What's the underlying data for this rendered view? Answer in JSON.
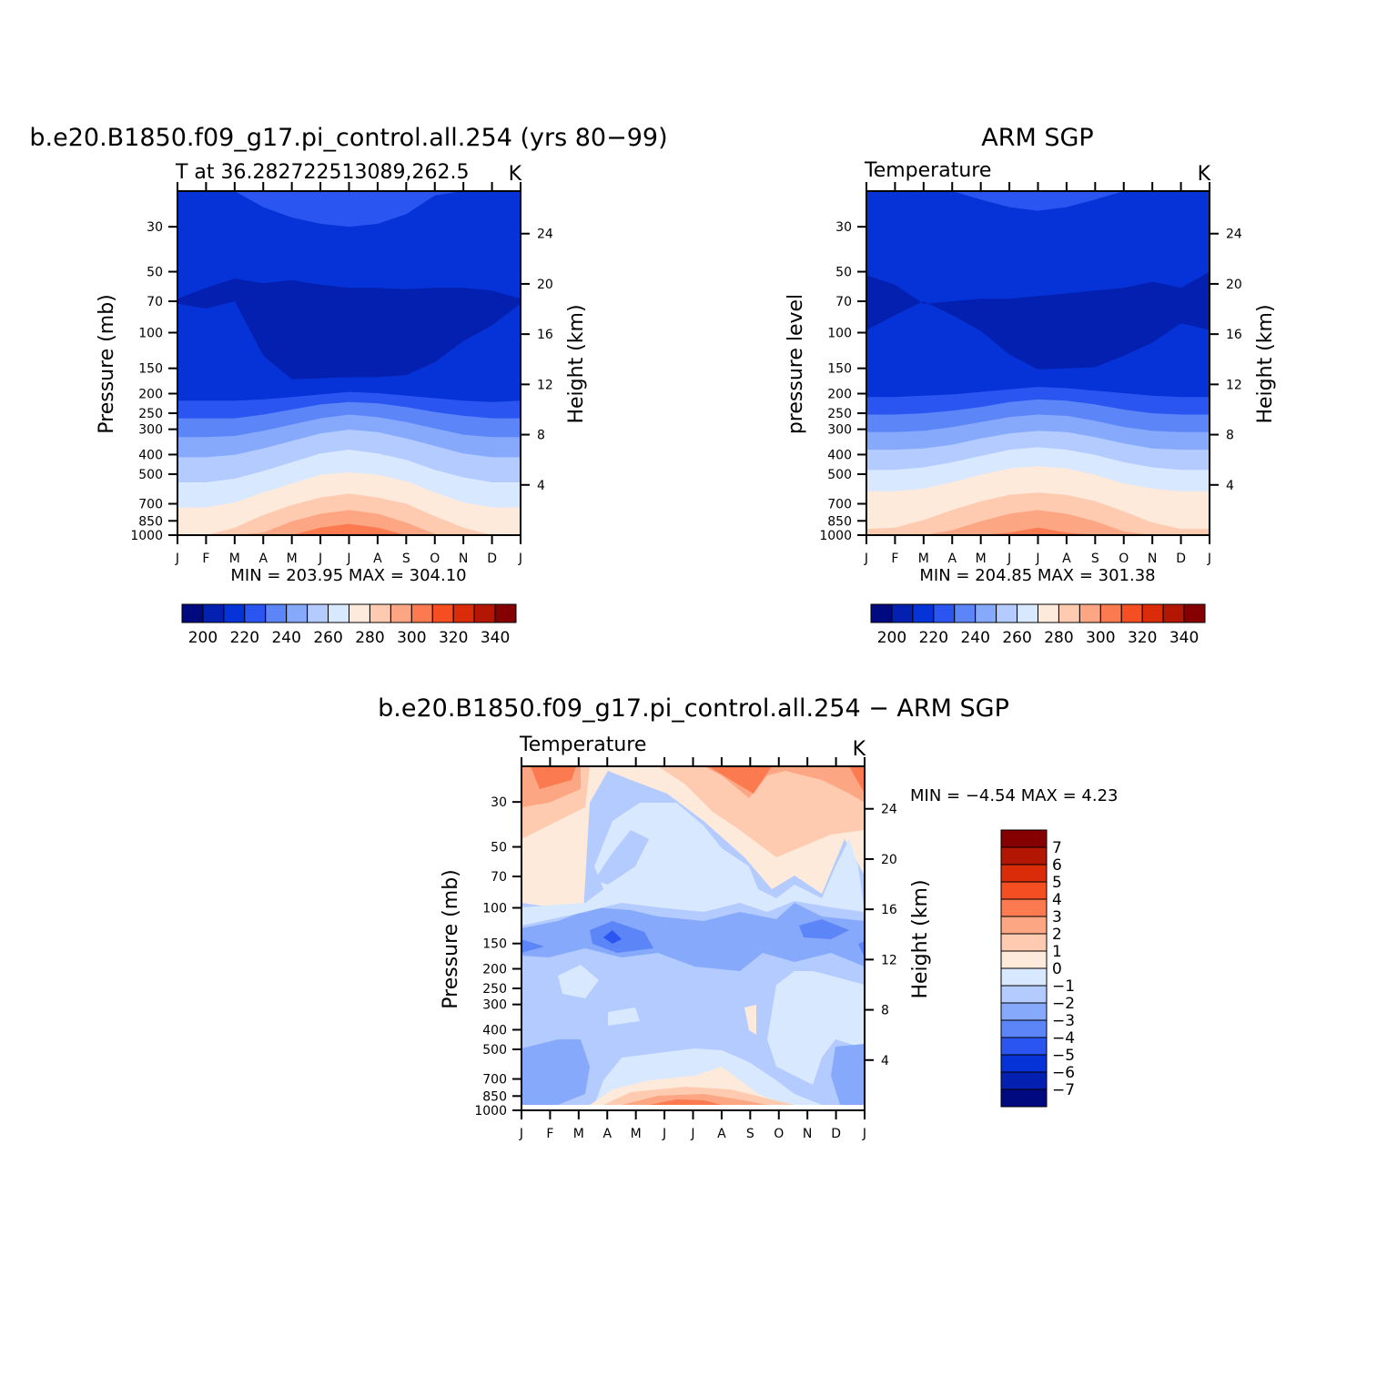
{
  "chart_data": [
    {
      "type": "heatmap",
      "title": "b.e20.B1850.f09_g17.pi_control.all.254 (yrs 80−99)",
      "left_label": "T at 36.282722513089,262.5",
      "unit_label": "K",
      "ylabel": "Pressure (mb)",
      "y2label": "Height (km)",
      "x_ticks": [
        "J",
        "F",
        "M",
        "A",
        "M",
        "J",
        "J",
        "A",
        "S",
        "O",
        "N",
        "D",
        "J"
      ],
      "y_ticks": [
        30,
        50,
        70,
        100,
        150,
        200,
        250,
        300,
        400,
        500,
        700,
        850,
        1000
      ],
      "y2_ticks": [
        24,
        20,
        16,
        12,
        8,
        4
      ],
      "ylim": [
        1000,
        20
      ],
      "min_max_text": "MIN = 203.95 MAX = 304.10",
      "colorbar_labels": [
        "200",
        "220",
        "240",
        "260",
        "280",
        "300",
        "320",
        "340"
      ],
      "colorbar_colors": [
        "#000a80",
        "#0420b0",
        "#0633d8",
        "#2a55f0",
        "#5c85f8",
        "#86a9fb",
        "#b3cbfe",
        "#d8e8fe",
        "#feeadb",
        "#fecbb0",
        "#fda683",
        "#fb7a50",
        "#f44e22",
        "#db2c0a",
        "#b31704",
        "#850000"
      ],
      "field_colors": {
        "upper": "#0633d8",
        "tropopause": "#0420b0",
        "top_warm": "#2a55f0"
      },
      "profile_bands": [
        {
          "color": "#2a55f0",
          "top_km": [
            10.7,
            10.7,
            10.7,
            10.8,
            11,
            11.2,
            11.4,
            11.3,
            11.1,
            10.9,
            10.7,
            10.6,
            10.7
          ]
        },
        {
          "color": "#5c85f8",
          "top_km": [
            9.3,
            9.3,
            9.3,
            9.6,
            10.0,
            10.4,
            10.6,
            10.5,
            10.2,
            9.8,
            9.5,
            9.3,
            9.3
          ]
        },
        {
          "color": "#86a9fb",
          "top_km": [
            7.8,
            7.8,
            7.9,
            8.3,
            8.8,
            9.3,
            9.6,
            9.4,
            9.0,
            8.5,
            8.0,
            7.8,
            7.8
          ]
        },
        {
          "color": "#b3cbfe",
          "top_km": [
            6.2,
            6.2,
            6.4,
            6.9,
            7.5,
            8.1,
            8.4,
            8.2,
            7.7,
            7.1,
            6.5,
            6.2,
            6.2
          ]
        },
        {
          "color": "#d8e8fe",
          "top_km": [
            4.2,
            4.2,
            4.5,
            5.1,
            5.8,
            6.5,
            6.8,
            6.5,
            6.0,
            5.2,
            4.6,
            4.2,
            4.2
          ]
        },
        {
          "color": "#feeadb",
          "top_km": [
            2.2,
            2.2,
            2.6,
            3.4,
            4.1,
            4.8,
            5.0,
            4.8,
            4.3,
            3.4,
            2.6,
            2.2,
            2.2
          ]
        },
        {
          "color": "#fecbb0",
          "top_km": [
            0,
            0,
            0.6,
            1.6,
            2.4,
            3.0,
            3.3,
            3.0,
            2.5,
            1.5,
            0.6,
            0,
            0
          ]
        },
        {
          "color": "#fda683",
          "top_km": [
            0,
            0,
            0,
            0.2,
            1.1,
            1.7,
            2.0,
            1.7,
            1.0,
            0.1,
            0,
            0,
            0
          ]
        },
        {
          "color": "#fb7a50",
          "top_km": [
            0,
            0,
            0,
            0,
            0,
            0.6,
            0.9,
            0.6,
            0,
            0,
            0,
            0,
            0
          ]
        }
      ]
    },
    {
      "type": "heatmap",
      "title": "ARM SGP",
      "left_label": "Temperature",
      "unit_label": "K",
      "ylabel": "pressure level",
      "y2label": "Height (km)",
      "x_ticks": [
        "J",
        "F",
        "M",
        "A",
        "M",
        "J",
        "J",
        "A",
        "S",
        "O",
        "N",
        "D",
        "J"
      ],
      "y_ticks": [
        30,
        50,
        70,
        100,
        150,
        200,
        250,
        300,
        400,
        500,
        700,
        850,
        1000
      ],
      "y2_ticks": [
        24,
        20,
        16,
        12,
        8,
        4
      ],
      "ylim": [
        1000,
        20
      ],
      "min_max_text": "MIN = 204.85 MAX = 301.38",
      "colorbar_labels": [
        "200",
        "220",
        "240",
        "260",
        "280",
        "300",
        "320",
        "340"
      ],
      "colorbar_colors": [
        "#000a80",
        "#0420b0",
        "#0633d8",
        "#2a55f0",
        "#5c85f8",
        "#86a9fb",
        "#b3cbfe",
        "#d8e8fe",
        "#feeadb",
        "#fecbb0",
        "#fda683",
        "#fb7a50",
        "#f44e22",
        "#db2c0a",
        "#b31704",
        "#850000"
      ],
      "field_colors": {
        "upper": "#0633d8",
        "tropopause": "#0420b0",
        "top_warm": "#2a55f0"
      },
      "profile_bands": [
        {
          "color": "#2a55f0",
          "top_km": [
            11.0,
            11.0,
            11.1,
            11.2,
            11.4,
            11.6,
            11.8,
            11.7,
            11.5,
            11.3,
            11.1,
            11.0,
            11.0
          ]
        },
        {
          "color": "#5c85f8",
          "top_km": [
            9.6,
            9.6,
            9.7,
            9.9,
            10.2,
            10.6,
            10.8,
            10.7,
            10.4,
            10.0,
            9.7,
            9.6,
            9.6
          ]
        },
        {
          "color": "#86a9fb",
          "top_km": [
            8.2,
            8.2,
            8.3,
            8.6,
            9.0,
            9.4,
            9.6,
            9.5,
            9.1,
            8.6,
            8.3,
            8.2,
            8.2
          ]
        },
        {
          "color": "#b3cbfe",
          "top_km": [
            6.8,
            6.8,
            6.9,
            7.2,
            7.7,
            8.1,
            8.3,
            8.2,
            7.8,
            7.3,
            6.9,
            6.8,
            6.8
          ]
        },
        {
          "color": "#d8e8fe",
          "top_km": [
            5.2,
            5.2,
            5.4,
            5.8,
            6.3,
            6.8,
            7.0,
            6.8,
            6.4,
            5.8,
            5.4,
            5.2,
            5.2
          ]
        },
        {
          "color": "#feeadb",
          "top_km": [
            3.5,
            3.5,
            3.7,
            4.2,
            4.8,
            5.3,
            5.5,
            5.3,
            4.8,
            4.1,
            3.7,
            3.5,
            3.5
          ]
        },
        {
          "color": "#fecbb0",
          "top_km": [
            0.5,
            0.6,
            1.2,
            2.0,
            2.7,
            3.2,
            3.4,
            3.2,
            2.7,
            1.9,
            1.0,
            0.5,
            0.5
          ]
        },
        {
          "color": "#fda683",
          "top_km": [
            0,
            0,
            0,
            0.4,
            1.1,
            1.7,
            2.0,
            1.7,
            1.1,
            0.3,
            0,
            0,
            0
          ]
        },
        {
          "color": "#fb7a50",
          "top_km": [
            0,
            0,
            0,
            0,
            0,
            0.2,
            0.6,
            0.2,
            0,
            0,
            0,
            0,
            0
          ]
        }
      ]
    },
    {
      "type": "heatmap",
      "title": "b.e20.B1850.f09_g17.pi_control.all.254 − ARM SGP",
      "left_label": "Temperature",
      "unit_label": "K",
      "ylabel": "Pressure (mb)",
      "y2label": "Height (km)",
      "x_ticks": [
        "J",
        "F",
        "M",
        "A",
        "M",
        "J",
        "J",
        "A",
        "S",
        "O",
        "N",
        "D",
        "J"
      ],
      "y_ticks": [
        30,
        50,
        70,
        100,
        150,
        200,
        250,
        300,
        400,
        500,
        700,
        850,
        1000
      ],
      "y2_ticks": [
        24,
        20,
        16,
        12,
        8,
        4
      ],
      "ylim": [
        1000,
        20
      ],
      "min_max_text": "MIN = −4.54 MAX = 4.23",
      "colorbar_labels": [
        "7",
        "6",
        "5",
        "4",
        "3",
        "2",
        "1",
        "0",
        "−1",
        "−2",
        "−3",
        "−4",
        "−5",
        "−6",
        "−7"
      ],
      "colorbar_colors": [
        "#850000",
        "#b31704",
        "#db2c0a",
        "#f44e22",
        "#fb7a50",
        "#fda683",
        "#fecbb0",
        "#feeadb",
        "#d8e8fe",
        "#b3cbfe",
        "#86a9fb",
        "#5c85f8",
        "#2a55f0",
        "#0633d8",
        "#0420b0",
        "#000a80"
      ],
      "field_colors": {
        "base": "#b3cbfe"
      }
    }
  ]
}
